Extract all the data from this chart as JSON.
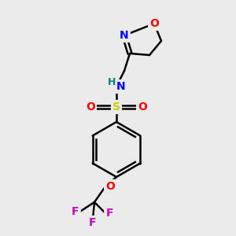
{
  "background_color": "#ebebeb",
  "bond_color": "#000000",
  "atom_colors": {
    "O": "#ff0000",
    "N": "#0000ff",
    "S": "#cccc00",
    "F": "#cc00cc",
    "H": "#008080",
    "C": "#000000"
  },
  "figsize": [
    3.0,
    3.0
  ],
  "dpi": 100
}
